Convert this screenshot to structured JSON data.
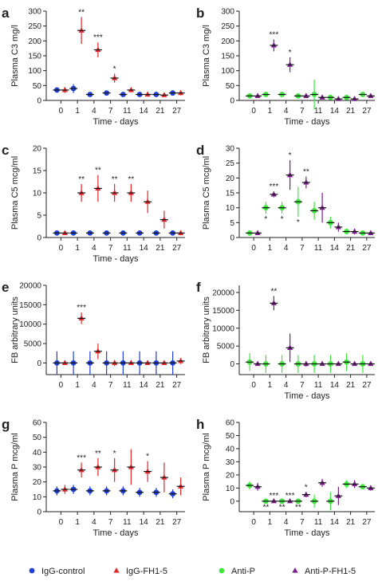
{
  "chart_data": [
    {
      "type": "dot",
      "panel": "a",
      "ylabel": "Plasma C3 mg/l",
      "xlabel": "Time - days",
      "categories": [
        "0",
        "1",
        "4",
        "7",
        "11",
        "14",
        "21",
        "27"
      ],
      "ylim": [
        0,
        300
      ],
      "yticks": [
        0,
        50,
        100,
        150,
        200,
        250,
        300
      ],
      "series": [
        {
          "color": "#1f3fd6",
          "marker": "circle",
          "values": [
            35,
            40,
            20,
            25,
            20,
            20,
            20,
            25
          ],
          "errors": [
            8,
            15,
            5,
            5,
            5,
            5,
            5,
            8
          ]
        },
        {
          "color": "#e3262a",
          "marker": "triangle",
          "values": [
            35,
            235,
            170,
            75,
            35,
            20,
            18,
            25
          ],
          "errors": [
            10,
            45,
            25,
            15,
            8,
            5,
            5,
            8
          ],
          "stars": [
            null,
            "**",
            "***",
            "*",
            null,
            null,
            null,
            null
          ]
        }
      ]
    },
    {
      "type": "dot",
      "panel": "b",
      "ylabel": "Plasma C3 mg/l",
      "xlabel": "Time - days",
      "categories": [
        "0",
        "1",
        "4",
        "7",
        "11",
        "14",
        "21",
        "27"
      ],
      "ylim": [
        0,
        300
      ],
      "yticks": [
        0,
        50,
        100,
        150,
        200,
        250,
        300
      ],
      "series": [
        {
          "color": "#3ee63e",
          "marker": "circle",
          "values": [
            15,
            20,
            20,
            15,
            20,
            10,
            10,
            20
          ],
          "errors": [
            3,
            5,
            8,
            3,
            50,
            3,
            3,
            5
          ]
        },
        {
          "color": "#7a1f8c",
          "marker": "triangle",
          "values": [
            15,
            185,
            120,
            15,
            10,
            5,
            5,
            15
          ],
          "errors": [
            3,
            20,
            25,
            3,
            5,
            3,
            3,
            5
          ],
          "stars": [
            null,
            "***",
            "*",
            null,
            null,
            null,
            null,
            null
          ]
        }
      ]
    },
    {
      "type": "dot",
      "panel": "c",
      "ylabel": "Plasma C5 mcg/ml",
      "xlabel": "Time - days",
      "categories": [
        "0",
        "1",
        "4",
        "7",
        "11",
        "14",
        "21",
        "27"
      ],
      "ylim": [
        0,
        20
      ],
      "yticks": [
        0,
        5,
        10,
        15,
        20
      ],
      "series": [
        {
          "color": "#1f3fd6",
          "marker": "circle",
          "values": [
            1,
            1,
            1,
            1,
            1,
            1,
            1,
            1
          ],
          "errors": [
            0.3,
            0.3,
            0.3,
            0.3,
            0.3,
            0.3,
            0.3,
            0.3
          ]
        },
        {
          "color": "#e3262a",
          "marker": "triangle",
          "values": [
            1,
            10,
            11,
            10,
            10,
            8,
            4,
            1
          ],
          "errors": [
            0.3,
            2,
            3,
            2,
            2,
            2.5,
            2,
            0.5
          ],
          "stars": [
            null,
            "**",
            "**",
            "**",
            "**",
            null,
            null,
            null
          ]
        }
      ]
    },
    {
      "type": "dot",
      "panel": "d",
      "ylabel": "Plasma C5 mcg/ml",
      "categories": [
        "0",
        "1",
        "4",
        "7",
        "11",
        "14",
        "21",
        "27"
      ],
      "ylim": [
        0,
        30
      ],
      "yticks": [
        0,
        5,
        10,
        15,
        20,
        25,
        30
      ],
      "series": [
        {
          "color": "#3ee63e",
          "marker": "circle",
          "values": [
            1.5,
            10,
            10,
            12,
            9,
            5,
            2,
            1.5
          ],
          "errors": [
            0.5,
            2,
            2,
            5,
            3,
            2,
            1,
            0.5
          ],
          "stars": [
            null,
            "*",
            "*",
            "*",
            null,
            null,
            null,
            null
          ],
          "star_side": "below"
        },
        {
          "color": "#7a1f8c",
          "marker": "triangle",
          "values": [
            1.5,
            14.5,
            21,
            18.5,
            10,
            3.5,
            2,
            1.5
          ],
          "errors": [
            0.5,
            1,
            5,
            2,
            5,
            1.5,
            1,
            0.5
          ],
          "stars": [
            null,
            "***",
            "*",
            "**",
            null,
            null,
            null,
            null
          ]
        }
      ]
    },
    {
      "type": "dot",
      "panel": "e",
      "ylabel": "FB arbitrary units",
      "categories": [
        "0",
        "1",
        "4",
        "7",
        "11",
        "14",
        "21",
        "27"
      ],
      "ylim": [
        -3000,
        20000
      ],
      "yticks": [
        0,
        5000,
        10000,
        15000,
        20000
      ],
      "series": [
        {
          "color": "#1f3fd6",
          "marker": "circle",
          "values": [
            0,
            0,
            0,
            0,
            0,
            0,
            0,
            0
          ],
          "errors": [
            3000,
            3000,
            3000,
            3000,
            3000,
            3000,
            3000,
            3000
          ]
        },
        {
          "color": "#e3262a",
          "marker": "triangle",
          "values": [
            0,
            11500,
            3000,
            0,
            0,
            0,
            0,
            500
          ],
          "errors": [
            500,
            1500,
            2000,
            800,
            500,
            500,
            500,
            800
          ],
          "stars": [
            null,
            "***",
            null,
            null,
            null,
            null,
            null,
            null
          ]
        }
      ]
    },
    {
      "type": "dot",
      "panel": "f",
      "ylabel": "FB arbitrary units",
      "xlabel": "Time - days",
      "categories": [
        "0",
        "1",
        "4",
        "7",
        "11",
        "14",
        "21",
        "27"
      ],
      "ylim": [
        -3000,
        22000
      ],
      "yticks": [
        0,
        5000,
        10000,
        15000,
        20000
      ],
      "series": [
        {
          "color": "#3ee63e",
          "marker": "circle",
          "values": [
            500,
            0,
            0,
            0,
            0,
            0,
            500,
            0
          ],
          "errors": [
            2500,
            2500,
            2500,
            2500,
            2500,
            2500,
            2500,
            2500
          ]
        },
        {
          "color": "#7a1f8c",
          "marker": "triangle",
          "values": [
            0,
            17000,
            4500,
            0,
            0,
            0,
            0,
            0
          ],
          "errors": [
            500,
            2000,
            4000,
            800,
            500,
            500,
            500,
            500
          ],
          "stars": [
            null,
            "**",
            null,
            null,
            null,
            null,
            null,
            null
          ]
        }
      ]
    },
    {
      "type": "dot",
      "panel": "g",
      "ylabel": "Plasma P mcg/ml",
      "xlabel": "Time - days",
      "categories": [
        "0",
        "1",
        "4",
        "7",
        "11",
        "14",
        "21",
        "27"
      ],
      "ylim": [
        0,
        60
      ],
      "yticks": [
        0,
        10,
        20,
        30,
        40,
        50,
        60
      ],
      "series": [
        {
          "name": "IgG-control",
          "color": "#1f3fd6",
          "marker": "circle",
          "values": [
            14,
            15,
            14,
            14,
            14,
            13,
            13,
            12
          ],
          "errors": [
            3,
            3,
            3,
            3,
            3,
            3,
            3,
            3
          ]
        },
        {
          "name": "IgG-FH1-5",
          "color": "#e3262a",
          "marker": "triangle",
          "values": [
            15,
            28,
            30,
            28,
            30,
            27,
            23,
            17
          ],
          "errors": [
            3,
            5,
            6,
            8,
            12,
            7,
            10,
            6
          ],
          "stars": [
            null,
            "***",
            "**",
            "*",
            null,
            "*",
            null,
            null
          ]
        }
      ]
    },
    {
      "type": "dot",
      "panel": "h",
      "ylabel": "Plasma P mcg/ml",
      "xlabel": "Time - days",
      "categories": [
        "0",
        "1",
        "4",
        "7",
        "11",
        "14",
        "21",
        "27"
      ],
      "ylim": [
        -8,
        60
      ],
      "yticks": [
        0,
        10,
        20,
        30,
        40,
        50,
        60
      ],
      "series": [
        {
          "name": "Anti-P",
          "color": "#3ee63e",
          "marker": "circle",
          "values": [
            12,
            0,
            0,
            0,
            0,
            0,
            13,
            11
          ],
          "errors": [
            3,
            0.5,
            0.5,
            0.5,
            5,
            7,
            3,
            2
          ],
          "stars": [
            null,
            "**",
            "**",
            "**",
            null,
            null,
            null,
            null
          ],
          "star_side": "below"
        },
        {
          "name": "Anti-P-FH1-5",
          "color": "#7a1f8c",
          "marker": "triangle",
          "values": [
            11,
            0,
            0,
            5,
            14,
            4,
            13,
            10
          ],
          "errors": [
            3,
            0.5,
            0.5,
            2,
            3,
            7,
            3,
            2
          ],
          "stars": [
            null,
            "***",
            "***",
            "*",
            null,
            null,
            null,
            null
          ]
        }
      ]
    }
  ]
}
